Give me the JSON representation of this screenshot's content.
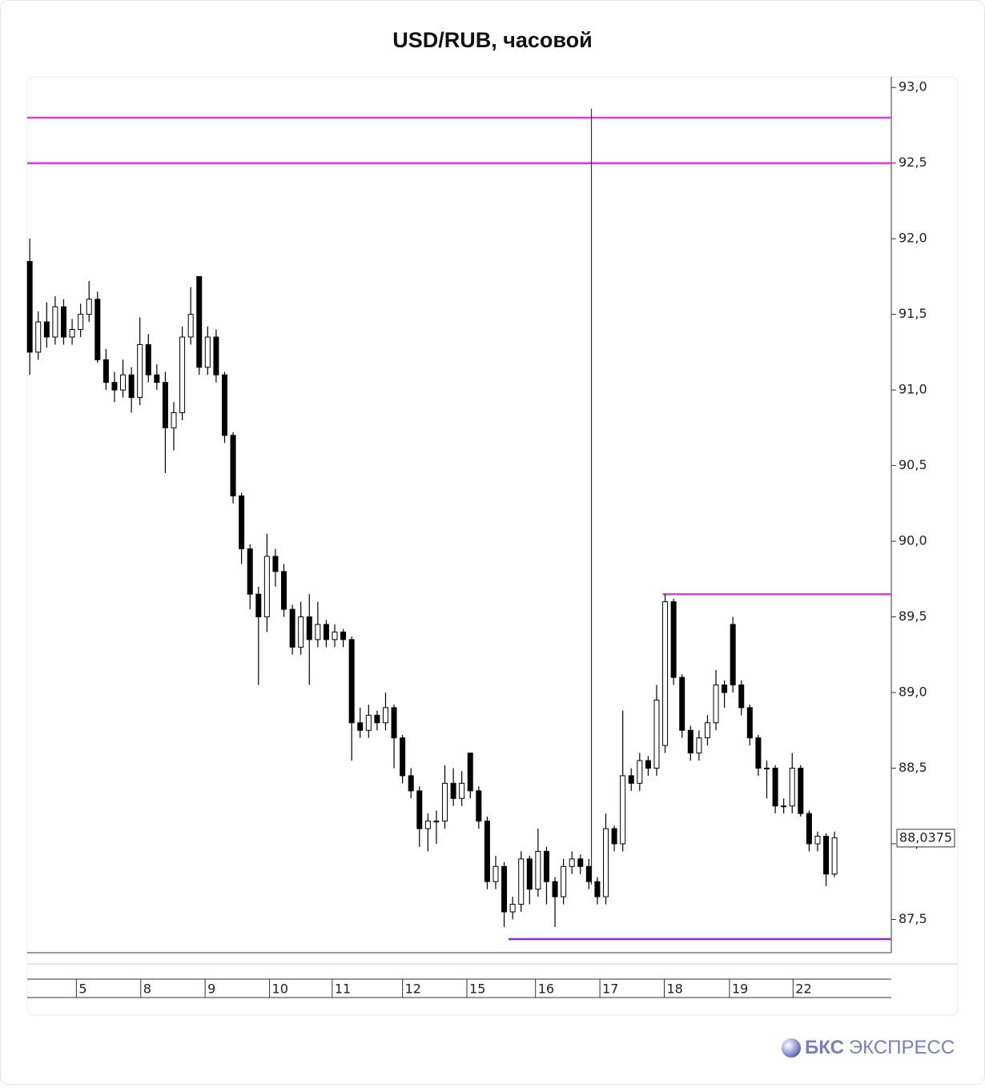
{
  "chart_data": {
    "type": "candlestick",
    "title": "USD/RUB, часовой",
    "x": [
      0,
      1,
      2,
      3,
      4,
      5,
      6,
      7,
      8,
      9,
      10,
      11,
      12,
      13,
      14,
      15,
      16,
      17,
      18,
      19,
      20,
      21,
      22,
      23,
      24,
      25,
      26,
      27,
      28,
      29,
      30,
      31,
      32,
      33,
      34,
      35,
      36,
      37,
      38,
      39,
      40,
      41,
      42,
      43,
      44,
      45,
      46,
      47,
      48,
      49,
      50,
      51,
      52,
      53,
      54,
      55,
      56,
      57,
      58,
      59,
      60,
      61,
      62,
      63,
      64,
      65,
      66,
      67,
      68,
      69,
      70,
      71,
      72,
      73,
      74,
      75,
      76,
      77,
      78,
      79,
      80,
      81,
      82,
      83,
      84,
      85,
      86,
      87,
      88,
      89,
      90,
      91,
      92,
      93,
      94,
      95
    ],
    "open": [
      91.85,
      91.25,
      91.45,
      91.35,
      91.55,
      91.35,
      91.4,
      91.5,
      91.6,
      91.2,
      91.05,
      91.0,
      91.1,
      90.95,
      91.3,
      91.1,
      91.05,
      90.75,
      90.85,
      91.35,
      91.75,
      91.15,
      91.35,
      91.1,
      90.7,
      90.3,
      89.95,
      89.65,
      89.5,
      89.9,
      89.8,
      89.55,
      89.3,
      89.5,
      89.35,
      89.45,
      89.35,
      89.4,
      89.35,
      88.8,
      88.75,
      88.85,
      88.8,
      88.9,
      88.7,
      88.45,
      88.35,
      88.1,
      88.15,
      88.15,
      88.4,
      88.3,
      88.6,
      88.35,
      88.15,
      87.75,
      87.85,
      87.55,
      87.6,
      87.9,
      87.7,
      87.95,
      87.75,
      87.65,
      87.85,
      87.9,
      87.85,
      87.75,
      87.65,
      88.1,
      88.0,
      88.45,
      88.4,
      88.55,
      88.5,
      88.65,
      89.6,
      89.1,
      88.75,
      88.6,
      88.7,
      88.8,
      89.05,
      89.45,
      89.05,
      88.9,
      88.7,
      88.5,
      88.5,
      88.25,
      88.25,
      88.5,
      88.2,
      88.0,
      88.05,
      87.8
    ],
    "high": [
      92.0,
      91.52,
      91.58,
      91.62,
      91.6,
      91.47,
      91.57,
      91.72,
      91.65,
      91.27,
      91.12,
      91.2,
      91.15,
      91.48,
      91.37,
      91.17,
      91.12,
      90.92,
      91.42,
      91.68,
      91.75,
      91.42,
      91.4,
      91.12,
      90.72,
      90.32,
      89.98,
      89.7,
      90.05,
      89.95,
      89.85,
      89.58,
      89.6,
      89.65,
      89.6,
      89.48,
      89.45,
      89.42,
      89.37,
      88.9,
      88.92,
      88.88,
      89.0,
      88.92,
      88.72,
      88.5,
      88.38,
      88.2,
      88.22,
      88.52,
      88.5,
      88.48,
      88.6,
      88.38,
      88.18,
      87.92,
      87.88,
      87.65,
      87.95,
      87.92,
      88.1,
      87.98,
      87.78,
      87.9,
      87.95,
      87.93,
      87.9,
      87.78,
      88.2,
      88.12,
      88.88,
      88.5,
      88.6,
      88.58,
      89.05,
      89.65,
      89.62,
      89.12,
      88.78,
      88.75,
      88.85,
      89.15,
      89.08,
      89.5,
      89.08,
      88.92,
      88.72,
      88.55,
      88.52,
      88.3,
      88.6,
      88.52,
      88.22,
      88.08,
      88.07,
      88.08
    ],
    "low": [
      91.1,
      91.2,
      91.28,
      91.3,
      91.3,
      91.3,
      91.35,
      91.45,
      91.18,
      91.0,
      90.92,
      90.95,
      90.85,
      90.9,
      91.05,
      91.0,
      90.45,
      90.6,
      90.8,
      91.3,
      91.1,
      91.1,
      91.05,
      90.65,
      90.25,
      89.85,
      89.55,
      89.05,
      89.4,
      89.7,
      89.5,
      89.25,
      89.25,
      89.05,
      89.3,
      89.3,
      89.3,
      89.3,
      88.55,
      88.7,
      88.7,
      88.75,
      88.75,
      88.5,
      88.4,
      88.3,
      87.98,
      87.95,
      88.0,
      88.1,
      88.25,
      88.25,
      88.3,
      88.1,
      87.7,
      87.7,
      87.45,
      87.5,
      87.55,
      87.6,
      87.65,
      87.6,
      87.45,
      87.6,
      87.8,
      87.8,
      87.7,
      87.6,
      87.6,
      87.95,
      87.95,
      88.35,
      88.35,
      88.45,
      88.45,
      88.6,
      89.05,
      88.7,
      88.55,
      88.55,
      88.65,
      88.75,
      88.9,
      89.0,
      88.85,
      88.65,
      88.45,
      88.3,
      88.2,
      88.2,
      88.2,
      88.18,
      87.95,
      87.95,
      87.72,
      87.78
    ],
    "close": [
      91.25,
      91.45,
      91.35,
      91.55,
      91.35,
      91.4,
      91.5,
      91.6,
      91.2,
      91.05,
      91.0,
      91.1,
      90.95,
      91.3,
      91.1,
      91.05,
      90.75,
      90.85,
      91.35,
      91.5,
      91.15,
      91.35,
      91.1,
      90.7,
      90.3,
      89.95,
      89.65,
      89.5,
      89.9,
      89.8,
      89.55,
      89.3,
      89.5,
      89.35,
      89.45,
      89.35,
      89.4,
      89.35,
      88.8,
      88.75,
      88.85,
      88.8,
      88.9,
      88.7,
      88.45,
      88.35,
      88.1,
      88.15,
      88.15,
      88.4,
      88.3,
      88.4,
      88.35,
      88.15,
      87.75,
      87.85,
      87.55,
      87.6,
      87.9,
      87.7,
      87.95,
      87.75,
      87.65,
      87.85,
      87.9,
      87.85,
      87.75,
      87.65,
      88.1,
      88.0,
      88.45,
      88.4,
      88.55,
      88.5,
      88.95,
      89.6,
      89.1,
      88.75,
      88.6,
      88.7,
      88.8,
      89.05,
      89.0,
      89.05,
      88.9,
      88.7,
      88.5,
      88.5,
      88.25,
      88.25,
      88.5,
      88.2,
      88.0,
      88.05,
      87.8,
      88.04
    ],
    "up_color": "#ffffff",
    "down_color": "#000000",
    "xlim": [
      -0.3,
      101.7
    ],
    "xticks": [
      {
        "value": 5.5,
        "label": "5"
      },
      {
        "value": 13.1,
        "label": "8"
      },
      {
        "value": 20.7,
        "label": "9"
      },
      {
        "value": 28.3,
        "label": "10"
      },
      {
        "value": 35.7,
        "label": "11"
      },
      {
        "value": 44.0,
        "label": "12"
      },
      {
        "value": 51.6,
        "label": "15"
      },
      {
        "value": 59.7,
        "label": "16"
      },
      {
        "value": 67.3,
        "label": "17"
      },
      {
        "value": 74.9,
        "label": "18"
      },
      {
        "value": 82.6,
        "label": "19"
      },
      {
        "value": 90.1,
        "label": "22"
      }
    ],
    "ylim": [
      87.28,
      93.07
    ],
    "yticks": [
      {
        "value": 87.5,
        "label": "87,5"
      },
      {
        "value": 88,
        "label": "88,0"
      },
      {
        "value": 88.5,
        "label": "88,5"
      },
      {
        "value": 89,
        "label": "89,0"
      },
      {
        "value": 89.5,
        "label": "89,5"
      },
      {
        "value": 90,
        "label": "90,0"
      },
      {
        "value": 90.5,
        "label": "90,5"
      },
      {
        "value": 91,
        "label": "91,0"
      },
      {
        "value": 91.5,
        "label": "91,5"
      },
      {
        "value": 92,
        "label": "92,0"
      },
      {
        "value": 92.5,
        "label": "92,5"
      },
      {
        "value": 93,
        "label": "93,0"
      }
    ],
    "levels": [
      {
        "value": 92.8,
        "color": "#d63ee0"
      },
      {
        "value": 92.5,
        "color": "#d63ee0"
      },
      {
        "value": 89.65,
        "color": "#d63ee0",
        "x_start": 74.7
      },
      {
        "value": 87.37,
        "color": "#8a2bd6",
        "x_start": 56.5
      }
    ],
    "marker_line": {
      "x": 66.3,
      "top": 92.86,
      "bottom": 87.73
    },
    "last_price": {
      "value": 88.0375,
      "label": "88,0375"
    }
  },
  "brand": {
    "bold": "БКС",
    "rest": "ЭКСПРЕСС"
  }
}
